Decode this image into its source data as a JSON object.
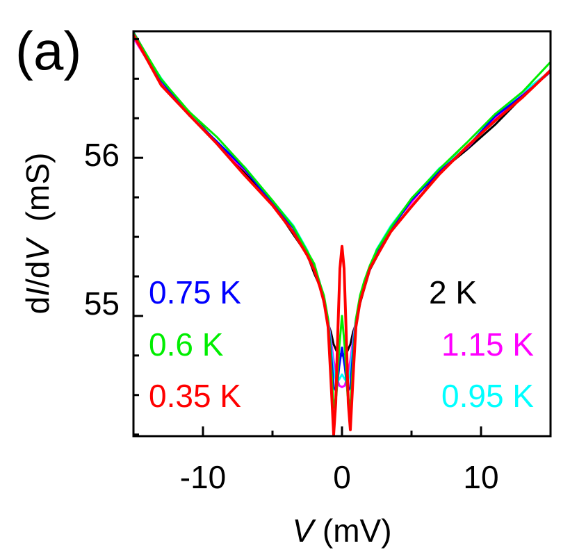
{
  "chart_data": {
    "type": "line",
    "panel_label": "(a)",
    "xlabel_var": "V",
    "xlabel_unit": " (mV)",
    "ylabel_prefix": "d",
    "ylabel_i": "I",
    "ylabel_mid": "/d",
    "ylabel_v": "V",
    "ylabel_unit": "  (mS)",
    "xlim": [
      -15,
      15
    ],
    "ylim": [
      54.24,
      56.8
    ],
    "xticks": [
      -10,
      0,
      10
    ],
    "xtick_labels": [
      "-10",
      "0",
      "10"
    ],
    "x_minor_ticks": [
      -15,
      -5,
      5,
      15
    ],
    "yticks": [
      55,
      56
    ],
    "ytick_labels": [
      "55",
      "56"
    ],
    "y_minor_ticks": [
      54.25,
      54.5,
      54.75,
      55.25,
      55.5,
      55.75,
      56.25,
      56.5,
      56.75
    ],
    "grid": false,
    "series": [
      {
        "name": "2 K",
        "label": "2 K",
        "color": "#000000",
        "x": [
          -15,
          -13,
          -11,
          -9,
          -7,
          -5,
          -3.5,
          -2.5,
          -2,
          -1.6,
          -1.3,
          -1,
          -0.8,
          -0.6,
          -0.4,
          -0.2,
          0,
          0.2,
          0.4,
          0.6,
          0.8,
          1,
          1.3,
          1.6,
          2,
          2.5,
          3.5,
          5,
          7,
          9,
          11,
          13,
          15
        ],
        "y": [
          56.78,
          56.48,
          56.28,
          56.1,
          55.92,
          55.7,
          55.52,
          55.38,
          55.28,
          55.18,
          55.08,
          54.95,
          54.9,
          54.82,
          54.78,
          54.76,
          54.75,
          54.76,
          54.78,
          54.82,
          54.9,
          54.95,
          55.08,
          55.18,
          55.28,
          55.38,
          55.53,
          55.7,
          55.9,
          56.05,
          56.22,
          56.38,
          56.55
        ]
      },
      {
        "name": "1.15 K",
        "label": "1.15 K",
        "color": "#ff00ff",
        "x": [
          -15,
          -13,
          -11,
          -9,
          -7,
          -5,
          -3.5,
          -2.5,
          -2,
          -1.6,
          -1.3,
          -1,
          -0.8,
          -0.6,
          -0.4,
          -0.2,
          0,
          0.2,
          0.4,
          0.6,
          0.8,
          1,
          1.3,
          1.6,
          2,
          2.5,
          3.5,
          5,
          7,
          9,
          11,
          13,
          15
        ],
        "y": [
          56.77,
          56.47,
          56.27,
          56.1,
          55.92,
          55.72,
          55.55,
          55.4,
          55.3,
          55.2,
          55.1,
          54.98,
          54.85,
          54.72,
          54.62,
          54.56,
          54.55,
          54.56,
          54.62,
          54.72,
          54.85,
          54.98,
          55.1,
          55.2,
          55.3,
          55.4,
          55.55,
          55.72,
          55.92,
          56.07,
          56.25,
          56.4,
          56.55
        ]
      },
      {
        "name": "0.95 K",
        "label": "0.95 K",
        "color": "#00ffff",
        "x": [
          -15,
          -13,
          -11,
          -9,
          -7,
          -5,
          -3.5,
          -2.5,
          -2,
          -1.6,
          -1.3,
          -1,
          -0.8,
          -0.6,
          -0.4,
          -0.2,
          0,
          0.2,
          0.4,
          0.6,
          0.8,
          1,
          1.3,
          1.6,
          2,
          2.5,
          3.5,
          5,
          7,
          9,
          11,
          13,
          15
        ],
        "y": [
          56.78,
          56.49,
          56.28,
          56.11,
          55.93,
          55.73,
          55.56,
          55.41,
          55.31,
          55.21,
          55.11,
          54.98,
          54.82,
          54.66,
          54.58,
          54.6,
          54.63,
          54.6,
          54.58,
          54.66,
          54.82,
          54.98,
          55.11,
          55.21,
          55.31,
          55.41,
          55.56,
          55.73,
          55.93,
          56.08,
          56.26,
          56.41,
          56.56
        ]
      },
      {
        "name": "0.75 K",
        "label": "0.75 K",
        "color": "#0000ff",
        "x": [
          -15,
          -13,
          -11,
          -9,
          -7,
          -5,
          -3.5,
          -2.5,
          -2,
          -1.6,
          -1.3,
          -1,
          -0.8,
          -0.6,
          -0.4,
          -0.2,
          0,
          0.2,
          0.4,
          0.6,
          0.8,
          1,
          1.3,
          1.6,
          2,
          2.5,
          3.5,
          5,
          7,
          9,
          11,
          13,
          15
        ],
        "y": [
          56.79,
          56.48,
          56.28,
          56.1,
          55.92,
          55.72,
          55.55,
          55.4,
          55.3,
          55.2,
          55.1,
          54.97,
          54.78,
          54.55,
          54.52,
          54.68,
          54.8,
          54.68,
          54.52,
          54.55,
          54.78,
          54.97,
          55.1,
          55.2,
          55.3,
          55.4,
          55.55,
          55.72,
          55.92,
          56.07,
          56.25,
          56.4,
          56.55
        ]
      },
      {
        "name": "0.6 K",
        "label": "0.6 K",
        "color": "#00ee00",
        "x": [
          -15,
          -13,
          -11,
          -9,
          -7,
          -5,
          -3.5,
          -2.5,
          -2,
          -1.6,
          -1.3,
          -1,
          -0.8,
          -0.6,
          -0.4,
          -0.2,
          0,
          0.2,
          0.4,
          0.6,
          0.8,
          1,
          1.3,
          1.6,
          2,
          2.5,
          3.5,
          5,
          7,
          9,
          11,
          13,
          15
        ],
        "y": [
          56.78,
          56.5,
          56.3,
          56.12,
          55.94,
          55.74,
          55.57,
          55.42,
          55.32,
          55.22,
          55.12,
          54.98,
          54.72,
          54.42,
          54.5,
          54.8,
          55.0,
          54.8,
          54.5,
          54.42,
          54.72,
          54.98,
          55.12,
          55.22,
          55.32,
          55.42,
          55.57,
          55.74,
          55.94,
          56.09,
          56.27,
          56.43,
          56.6
        ]
      },
      {
        "name": "0.35 K",
        "label": "0.35 K",
        "color": "#ff0000",
        "x": [
          -15,
          -13,
          -11,
          -9,
          -7,
          -5,
          -3.5,
          -2.5,
          -2,
          -1.6,
          -1.3,
          -1,
          -0.8,
          -0.6,
          -0.45,
          -0.3,
          -0.15,
          0,
          0.15,
          0.3,
          0.45,
          0.6,
          0.8,
          1,
          1.3,
          1.6,
          2,
          2.5,
          3.5,
          5,
          7,
          9,
          11,
          13,
          15
        ],
        "y": [
          56.77,
          56.47,
          56.27,
          56.08,
          55.9,
          55.7,
          55.54,
          55.39,
          55.29,
          55.19,
          55.08,
          54.93,
          54.6,
          54.25,
          54.45,
          54.9,
          55.3,
          55.44,
          55.3,
          54.9,
          54.45,
          54.28,
          54.62,
          54.93,
          55.08,
          55.19,
          55.29,
          55.39,
          55.54,
          55.7,
          55.9,
          56.06,
          56.24,
          56.39,
          56.54
        ]
      }
    ]
  }
}
